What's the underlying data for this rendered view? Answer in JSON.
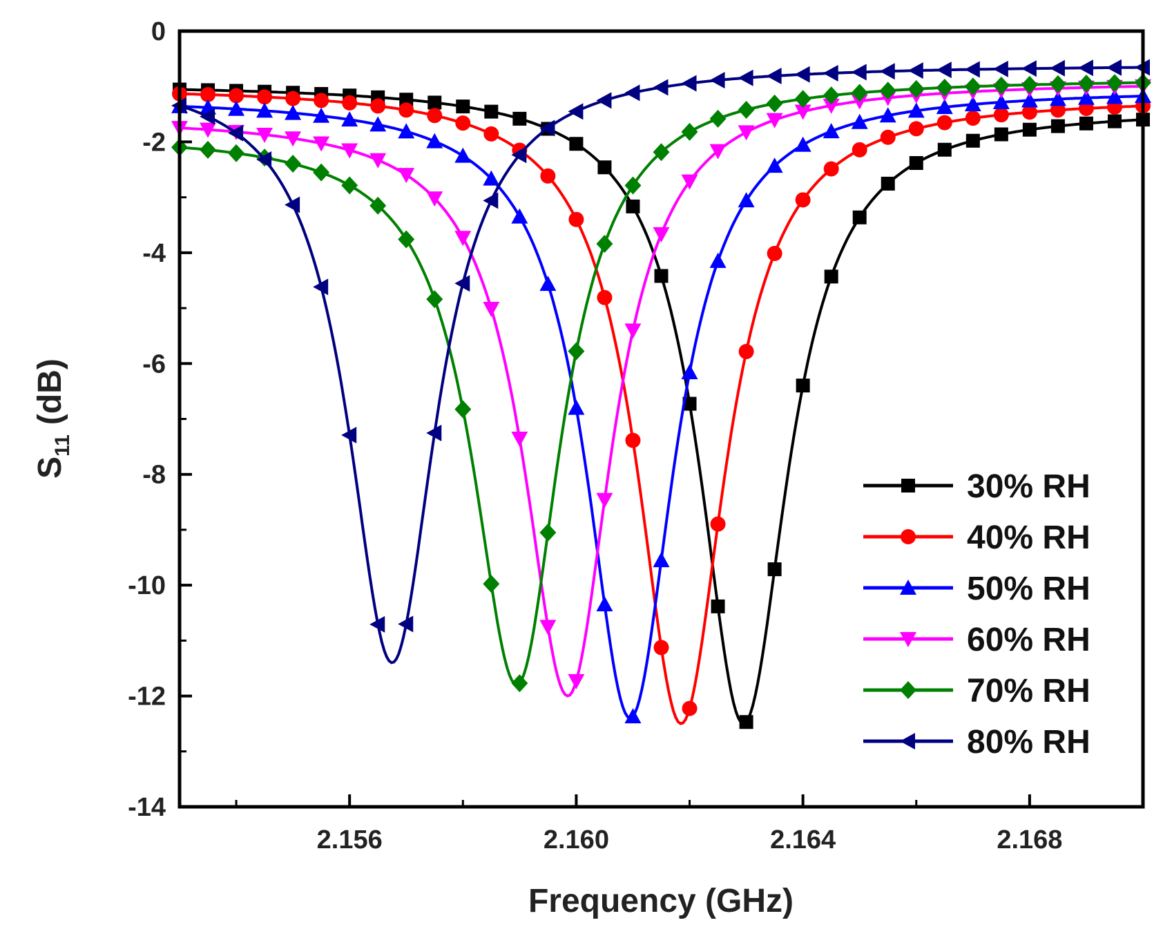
{
  "chart_data": {
    "type": "line",
    "title": "",
    "xlabel": "Frequency (GHz)",
    "ylabel_main": "S",
    "ylabel_sub": "11",
    "ylabel_unit": "(dB)",
    "xlim": [
      2.153,
      2.17
    ],
    "ylim": [
      -14,
      0
    ],
    "xticks": [
      2.156,
      2.16,
      2.164,
      2.168
    ],
    "xtick_labels": [
      "2.156",
      "2.160",
      "2.164",
      "2.168"
    ],
    "xminor": [
      2.154,
      2.158,
      2.162,
      2.166,
      2.17
    ],
    "yticks": [
      0,
      -2,
      -4,
      -6,
      -8,
      -10,
      -12,
      -14
    ],
    "ytick_labels": [
      "0",
      "-2",
      "-4",
      "-6",
      "-8",
      "-10",
      "-12",
      "-14"
    ],
    "grid": false,
    "legend_position": "lower-right",
    "series": [
      {
        "name": "30% RH",
        "color": "#000000",
        "marker": "square",
        "f0": 2.16295,
        "depth": 12.5,
        "width": 0.00095,
        "base_left": 0.95,
        "base_right": 1.4
      },
      {
        "name": "40% RH",
        "color": "#ff0000",
        "marker": "circle",
        "f0": 2.16185,
        "depth": 12.5,
        "width": 0.00095,
        "base_left": 1.0,
        "base_right": 1.2
      },
      {
        "name": "50% RH",
        "color": "#0000ff",
        "marker": "triangle-up",
        "f0": 2.16095,
        "depth": 12.4,
        "width": 0.00095,
        "base_left": 1.2,
        "base_right": 1.05
      },
      {
        "name": "60% RH",
        "color": "#ff00ff",
        "marker": "triangle-down",
        "f0": 2.15985,
        "depth": 12.0,
        "width": 0.00095,
        "base_left": 1.55,
        "base_right": 0.9
      },
      {
        "name": "70% RH",
        "color": "#008000",
        "marker": "diamond",
        "f0": 2.15895,
        "depth": 11.8,
        "width": 0.00095,
        "base_left": 1.85,
        "base_right": 0.85
      },
      {
        "name": "80% RH",
        "color": "#000080",
        "marker": "triangle-left",
        "f0": 2.15675,
        "depth": 11.4,
        "width": 0.00095,
        "base_left": 0.7,
        "base_right": 0.6
      }
    ]
  }
}
